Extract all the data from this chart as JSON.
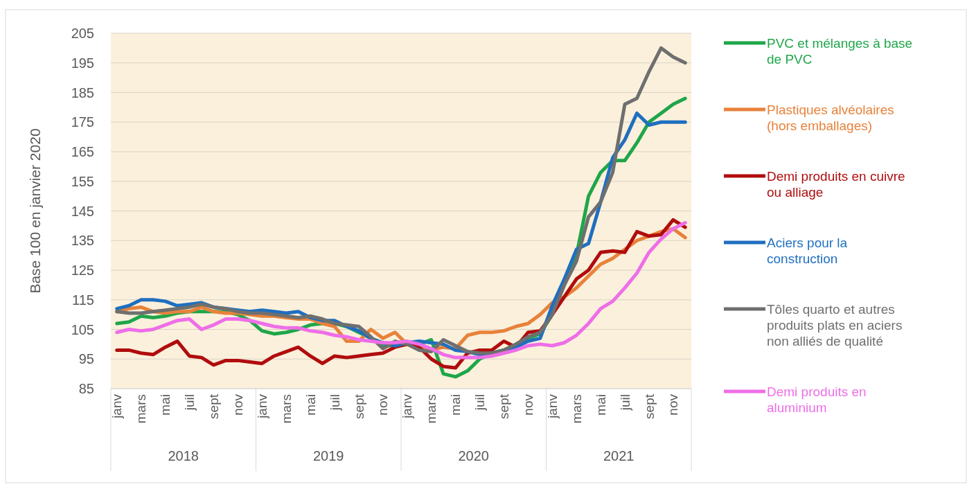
{
  "chart_data": {
    "type": "line",
    "ylabel": "Base 100 en janvier 2020",
    "categories": [
      "janv",
      null,
      "mars",
      null,
      "mai",
      null,
      "juil",
      null,
      "sept",
      null,
      "nov",
      null,
      "janv",
      null,
      "mars",
      null,
      "mai",
      null,
      "juil",
      null,
      "sept",
      null,
      "nov",
      null,
      "janv",
      null,
      "mars",
      null,
      "mai",
      null,
      "juil",
      null,
      "sept",
      null,
      "nov",
      null,
      "janv",
      null,
      "mars",
      null,
      "mai",
      null,
      "juil",
      null,
      "sept",
      null,
      "nov",
      null
    ],
    "annotations": [
      "2018",
      "2019",
      "2020",
      "2021"
    ],
    "ylim": [
      85,
      205
    ],
    "yticks": [
      85,
      95,
      105,
      115,
      125,
      135,
      145,
      155,
      165,
      175,
      185,
      195,
      205
    ],
    "grid": "y",
    "legend": "right",
    "line_style": "solid",
    "marker": "none",
    "series": [
      {
        "name": "PVC et mélanges à base de PVC",
        "color": "#1fa64a",
        "values": [
          107,
          107.5,
          109.5,
          109,
          109.5,
          110.5,
          111,
          111,
          111,
          111,
          110,
          108,
          104.5,
          103.5,
          104,
          105,
          106.5,
          107,
          107,
          106,
          104,
          102,
          99.5,
          99.5,
          100,
          100,
          101.5,
          90,
          89,
          91,
          95,
          97,
          98,
          100,
          102,
          103.5,
          110,
          120,
          130,
          150,
          158,
          162,
          162,
          168,
          175,
          178,
          181,
          183
        ]
      },
      {
        "name": "Plastiques alvéolaires (hors emballages)",
        "color": "#e8823a",
        "values": [
          111,
          112,
          112.5,
          111,
          110.5,
          111,
          111,
          112.5,
          111,
          110.5,
          110.5,
          110,
          109.5,
          109.5,
          109,
          108.5,
          108.5,
          107,
          106,
          101,
          101,
          105,
          102,
          104,
          100,
          99,
          98,
          99,
          98.5,
          103,
          104,
          104,
          104.5,
          106,
          107,
          110,
          114,
          116,
          119,
          123,
          127,
          129,
          132,
          135,
          136.5,
          138,
          139,
          136
        ]
      },
      {
        "name": "Demi produits en cuivre ou alliage",
        "color": "#b00d0d",
        "values": [
          98,
          98,
          97,
          96.5,
          99,
          101,
          96,
          95.5,
          93,
          94.5,
          94.5,
          94,
          93.5,
          96,
          97.5,
          99,
          96,
          93.5,
          96,
          95.5,
          96,
          96.5,
          97,
          99,
          100,
          99,
          95,
          92.5,
          92,
          97,
          98,
          98,
          101,
          99,
          104,
          104.5,
          110,
          116,
          122,
          125,
          131,
          131.5,
          131,
          138,
          136.5,
          137,
          142,
          139.5
        ]
      },
      {
        "name": "Aciers pour la construction",
        "color": "#1f6fbf",
        "values": [
          112,
          113,
          115,
          115,
          114.5,
          113,
          113.5,
          114,
          112.5,
          112,
          111.5,
          111,
          111.5,
          111,
          110.5,
          111,
          109,
          108,
          108,
          106,
          104.5,
          102,
          100.5,
          99.5,
          100.5,
          101,
          100.5,
          100,
          98,
          97.5,
          96.5,
          97,
          98,
          99,
          101,
          102,
          113,
          122,
          132,
          134,
          148,
          163,
          169,
          178,
          174,
          175,
          175,
          175
        ]
      },
      {
        "name": "Tôles quarto et autres produits plats en aciers non alliés de qualité",
        "color": "#6f6f6f",
        "values": [
          111,
          110.5,
          110.5,
          111,
          111.5,
          112,
          112.5,
          113.5,
          112.5,
          112,
          111,
          110.5,
          110.5,
          110,
          109.5,
          109,
          109.5,
          108.5,
          107,
          106.5,
          106,
          102.5,
          98.5,
          101,
          100,
          98,
          97.5,
          101.5,
          99.5,
          97.5,
          97,
          97,
          98,
          100,
          102.5,
          104,
          110,
          120,
          128,
          143,
          148,
          158,
          181,
          183,
          192,
          200,
          197,
          195
        ]
      },
      {
        "name": "Demi produits en aluminium",
        "color": "#ee6ee8",
        "values": [
          104,
          105,
          104.5,
          105,
          106.5,
          108,
          108.5,
          105,
          106.5,
          108.5,
          108.5,
          108,
          107,
          106,
          105.5,
          105.5,
          104.5,
          104,
          103,
          102.5,
          101.5,
          101,
          100.5,
          100.5,
          101,
          100,
          98.5,
          96.5,
          95.5,
          95.5,
          95.5,
          96,
          97,
          98,
          99.5,
          100,
          99.5,
          100.5,
          103,
          107,
          112,
          114.5,
          119,
          124,
          131,
          135.5,
          139,
          141
        ]
      }
    ]
  }
}
